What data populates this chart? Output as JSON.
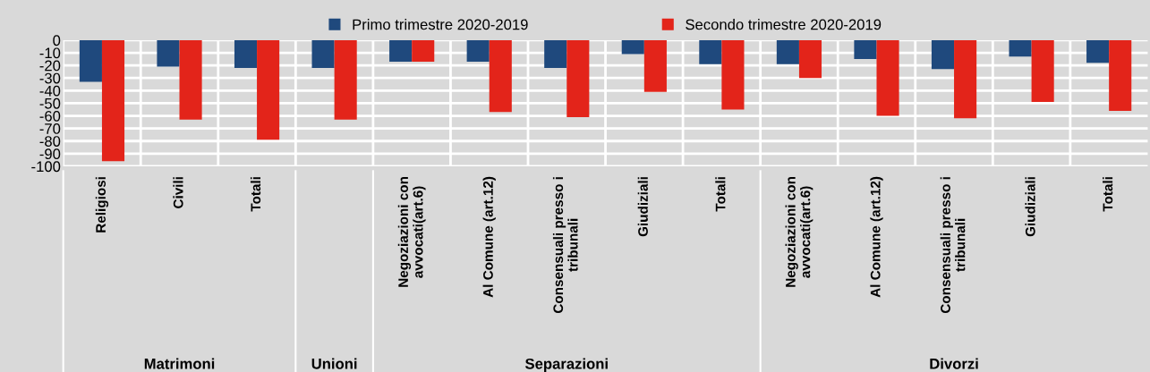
{
  "chart_data": {
    "type": "bar",
    "categories": [
      "Religiosi",
      "Civili",
      "Totali",
      null,
      "Negoziazioni con\navvocati(art.6)",
      "Al Comune (art.12)",
      "Consensuali presso i\ntribunali",
      "Giudiziali",
      "Totali",
      "Negoziazioni con\navvocati(art.6)",
      "Al Comune (art.12)",
      "Consensuali presso i\ntribunali",
      "Giudiziali",
      "Totali"
    ],
    "series": [
      {
        "name": "Primo trimestre 2020-2019",
        "color": "#1f497d",
        "values": [
          -33,
          -21,
          -22,
          -22,
          -17,
          -17,
          -22,
          -11,
          -19,
          -19,
          -15,
          -23,
          -13,
          -18
        ]
      },
      {
        "name": "Secondo trimestre 2020-2019",
        "color": "#e3241a",
        "values": [
          -96,
          -63,
          -79,
          -63,
          -17,
          -57,
          -61,
          -41,
          -55,
          -30,
          -60,
          -62,
          -49,
          -56
        ]
      }
    ],
    "ylim": [
      -100,
      0
    ],
    "yticks": [
      0,
      -10,
      -20,
      -30,
      -40,
      -50,
      -60,
      -70,
      -80,
      -90,
      -100
    ],
    "grid": true,
    "legend": "top",
    "annotations": [
      "Matrimoni",
      "Unioni",
      "Separazioni",
      "Divorzi"
    ]
  }
}
